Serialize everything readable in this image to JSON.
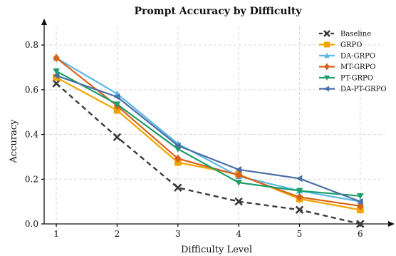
{
  "chart_data": {
    "type": "line",
    "title": "Prompt Accuracy by Difficulty",
    "xlabel": "Difficulty Level",
    "ylabel": "Accuracy",
    "x": [
      1,
      2,
      3,
      4,
      5,
      6
    ],
    "xticks": [
      "1",
      "2",
      "3",
      "4",
      "5",
      "6"
    ],
    "yticks": [
      "0.0",
      "0.2",
      "0.4",
      "0.6",
      "0.8"
    ],
    "ytick_values": [
      0.0,
      0.2,
      0.4,
      0.6,
      0.8
    ],
    "xlim": [
      0.8,
      6.4
    ],
    "ylim": [
      0.0,
      0.88
    ],
    "grid": true,
    "legend_position": "top-right",
    "series": [
      {
        "name": "Baseline",
        "color": "#3a3a3a",
        "marker": "x",
        "dashed": true,
        "values": [
          0.628,
          0.388,
          0.162,
          0.1,
          0.063,
          0.0
        ]
      },
      {
        "name": "GRPO",
        "color": "#f0a400",
        "marker": "square",
        "dashed": false,
        "values": [
          0.655,
          0.508,
          0.275,
          0.222,
          0.112,
          0.063
        ]
      },
      {
        "name": "DA-GRPO",
        "color": "#5cb8e6",
        "marker": "triangle-up",
        "dashed": false,
        "values": [
          0.742,
          0.582,
          0.358,
          0.213,
          0.148,
          0.1
        ]
      },
      {
        "name": "MT-GRPO",
        "color": "#d9621b",
        "marker": "diamond",
        "dashed": false,
        "values": [
          0.742,
          0.528,
          0.292,
          0.218,
          0.12,
          0.08
        ]
      },
      {
        "name": "PT-GRPO",
        "color": "#1a9e6a",
        "marker": "triangle-down",
        "dashed": false,
        "values": [
          0.683,
          0.535,
          0.335,
          0.185,
          0.148,
          0.125
        ]
      },
      {
        "name": "DA-PT-GRPO",
        "color": "#4a6fa5",
        "marker": "triangle-left",
        "dashed": false,
        "values": [
          0.663,
          0.568,
          0.35,
          0.243,
          0.203,
          0.1
        ]
      }
    ]
  }
}
